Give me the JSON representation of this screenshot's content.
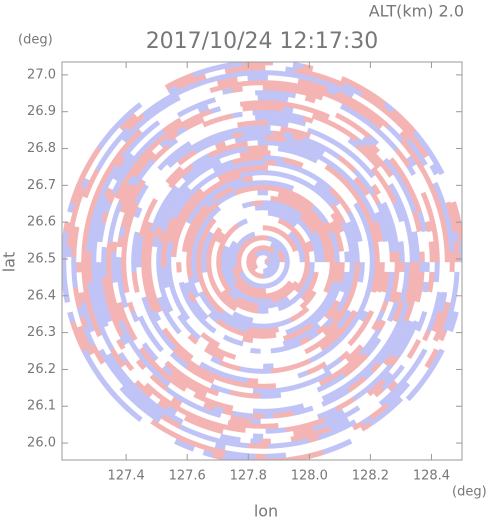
{
  "chart_data": {
    "type": "radar",
    "title": "2017/10/24 12:17:30",
    "altitude": "ALT(km) 2.0",
    "xlabel": "lon",
    "ylabel": "lat",
    "x_unit": "(deg)",
    "y_unit": "(deg)",
    "xlim": [
      127.19,
      128.5
    ],
    "ylim": [
      25.954,
      27.035
    ],
    "xticks": [
      127.4,
      127.6,
      127.8,
      {
        "value": 128.0,
        "label": "128.0"
      },
      128.2,
      128.4
    ],
    "yticks": [
      {
        "value": 26.0,
        "label": "26.0"
      },
      26.1,
      26.2,
      26.3,
      26.4,
      26.5,
      26.6,
      26.7,
      26.8,
      26.9,
      {
        "value": 27.0,
        "label": "27.0"
      }
    ],
    "colors": [
      "#f4b4b4",
      "#bfc3f6",
      "#ffffff"
    ]
  }
}
